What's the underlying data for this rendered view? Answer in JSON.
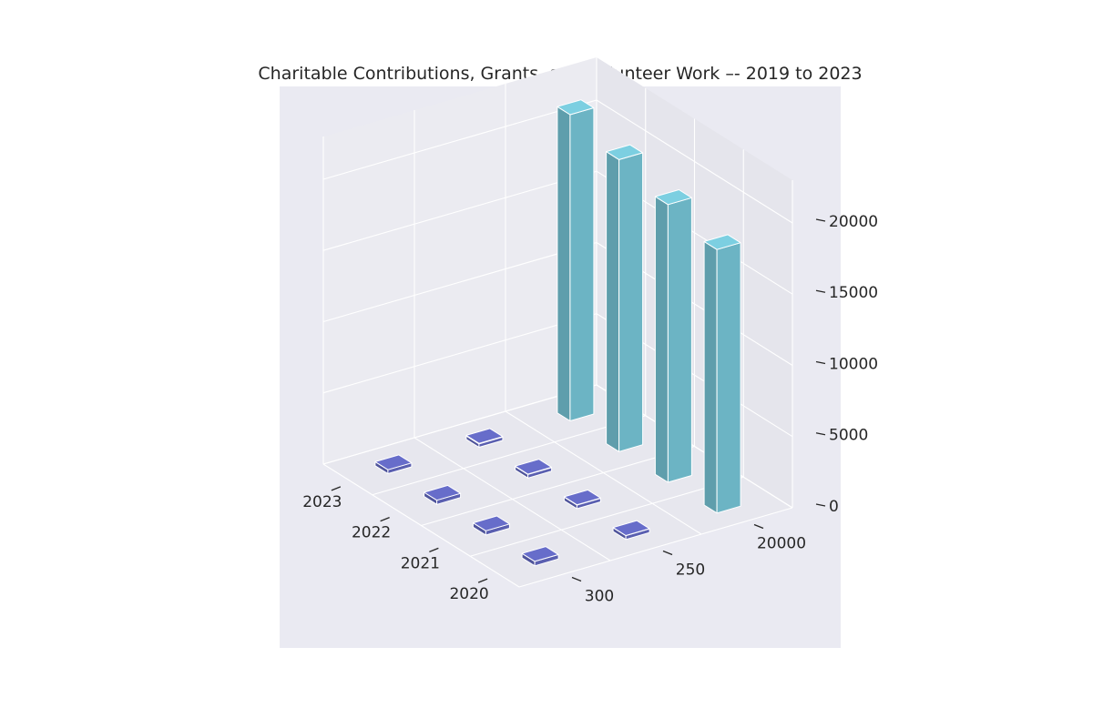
{
  "chart_data": {
    "type": "bar3d",
    "title": "Charitable Contributions, Grants, and Volunteer Work –- 2019 to 2023",
    "categories": [
      "2020",
      "2021",
      "2022",
      "2023"
    ],
    "depth_ticks": [
      "300",
      "250",
      "20000"
    ],
    "z_ticks": [
      "0",
      "5000",
      "10000",
      "15000",
      "20000"
    ],
    "zlim": [
      0,
      23000
    ],
    "series": [
      {
        "values": [
          310,
          300,
          290,
          275
        ],
        "color": "#5a5fb0"
      },
      {
        "values": [
          260,
          250,
          245,
          235
        ],
        "color": "#5a5fb0"
      },
      {
        "values": [
          18500,
          19500,
          20500,
          21500
        ],
        "color": "#6cb4c4"
      }
    ],
    "pane_color": "#eaeaf2",
    "grid": true
  }
}
